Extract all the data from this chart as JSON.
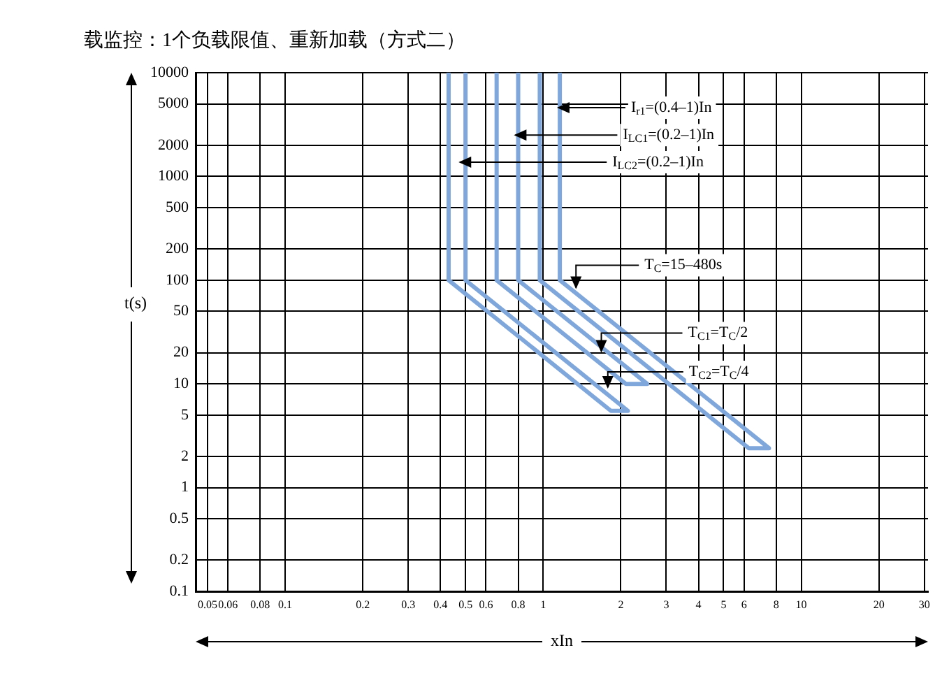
{
  "chart_data": {
    "type": "line",
    "title": "载监控：1个负载限值、重新加载（方式二）",
    "xlabel": "xIn",
    "ylabel": "t(s)",
    "log": "xy",
    "grid": true,
    "legend": false,
    "marker": "none",
    "line_style": "solid",
    "xlim": [
      0.045,
      31
    ],
    "ylim": [
      0.1,
      10000
    ],
    "xticks": [
      0.05,
      0.06,
      0.08,
      0.1,
      0.2,
      0.3,
      0.4,
      0.5,
      0.6,
      0.8,
      1,
      2,
      3,
      4,
      5,
      6,
      8,
      10,
      20,
      30
    ],
    "yticks": [
      0.1,
      0.2,
      0.5,
      1,
      2,
      5,
      10,
      20,
      50,
      100,
      200,
      500,
      1000,
      2000,
      5000,
      10000
    ],
    "series": [
      {
        "color": "#7fa7dc",
        "x": [
          0.43,
          0.43,
          1.83,
          2.13,
          0.5,
          0.5
        ],
        "values": [
          10000,
          100,
          5.5,
          5.5,
          100,
          10000
        ]
      },
      {
        "color": "#7fa7dc",
        "x": [
          0.66,
          0.66,
          2.09,
          2.53,
          0.8,
          0.8
        ],
        "values": [
          10000,
          100,
          10,
          10,
          100,
          10000
        ]
      },
      {
        "color": "#7fa7dc",
        "x": [
          0.97,
          0.97,
          6.26,
          7.5,
          1.16,
          1.16
        ],
        "values": [
          10000,
          100,
          2.4,
          2.4,
          100,
          10000
        ]
      }
    ],
    "annotations": [
      {
        "text": "I$_{r1}$=(0.4–1)In",
        "x": 1.13,
        "y": 4600
      },
      {
        "text": "I$_{LC1}$=(0.2–1)In",
        "x": 0.77,
        "y": 2500
      },
      {
        "text": "I$_{LC2}$=(0.2–1)In",
        "x": 0.47,
        "y": 1370
      },
      {
        "text": "T$_{C}$=15–480s",
        "x": 1.34,
        "y": 82
      },
      {
        "text": "T$_{C1}$=T$_{C}$/2",
        "x": 1.68,
        "y": 20
      },
      {
        "text": "T$_{C2}$=T$_{C}$/4",
        "x": 1.78,
        "y": 9
      }
    ]
  }
}
